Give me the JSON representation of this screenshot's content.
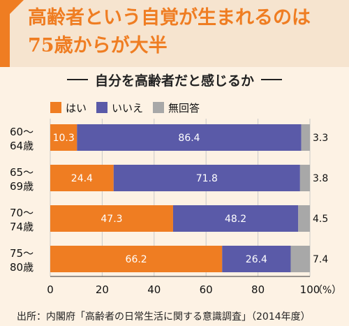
{
  "header": {
    "title": "高齢者という自覚が生まれるのは75歳からが大半",
    "subtitle": "自分を高齢者だと感じるか"
  },
  "legend": [
    {
      "label": "はい",
      "color": "#ef7d22"
    },
    {
      "label": "いいえ",
      "color": "#5a5aa8"
    },
    {
      "label": "無回答",
      "color": "#a8a8a8"
    }
  ],
  "chart_data": {
    "type": "bar",
    "orientation": "horizontal",
    "stacked": true,
    "categories": [
      "60〜64歳",
      "65〜69歳",
      "70〜74歳",
      "75〜80歳"
    ],
    "series": [
      {
        "name": "はい",
        "values": [
          10.3,
          24.4,
          47.3,
          66.2
        ],
        "color": "#ef7d22"
      },
      {
        "name": "いいえ",
        "values": [
          86.4,
          71.8,
          48.2,
          26.4
        ],
        "color": "#5a5aa8"
      },
      {
        "name": "無回答",
        "values": [
          3.3,
          3.8,
          4.5,
          7.4
        ],
        "color": "#a8a8a8"
      }
    ],
    "xlim": [
      0,
      100
    ],
    "x_ticks": [
      "0",
      "20",
      "40",
      "60",
      "80",
      "100"
    ],
    "x_unit": "（%）",
    "grid": true
  },
  "source": "出所：内閣府「高齢者の日常生活に関する意識調査」（2014年度）"
}
